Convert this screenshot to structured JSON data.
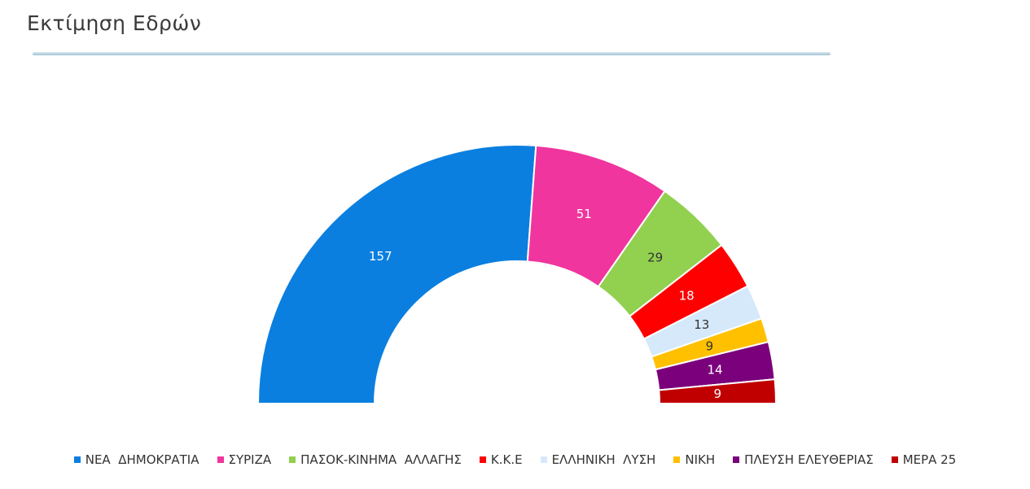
{
  "chart_data": {
    "type": "semidonut",
    "title": "Εκτίμηση Εδρών",
    "categories": [
      "ΝΕΑ  ΔΗΜΟΚΡΑΤΙΑ",
      "ΣΥΡΙΖΑ",
      "ΠΑΣΟΚ-ΚΙΝΗΜΑ  ΑΛΛΑΓΗΣ",
      "Κ.Κ.Ε",
      "ΕΛΛΗΝΙΚΗ  ΛΥΣΗ",
      "ΝΙΚΗ",
      "ΠΛΕΥΣΗ ΕΛΕΥΘΕΡΙΑΣ",
      "ΜΕΡΑ 25"
    ],
    "values": [
      157,
      51,
      29,
      18,
      13,
      9,
      14,
      9
    ],
    "colors": [
      "#0a7fe0",
      "#f0359e",
      "#92d050",
      "#ff0000",
      "#d6e9fb",
      "#ffc000",
      "#7b007b",
      "#c00000"
    ],
    "legend": "bottom"
  }
}
